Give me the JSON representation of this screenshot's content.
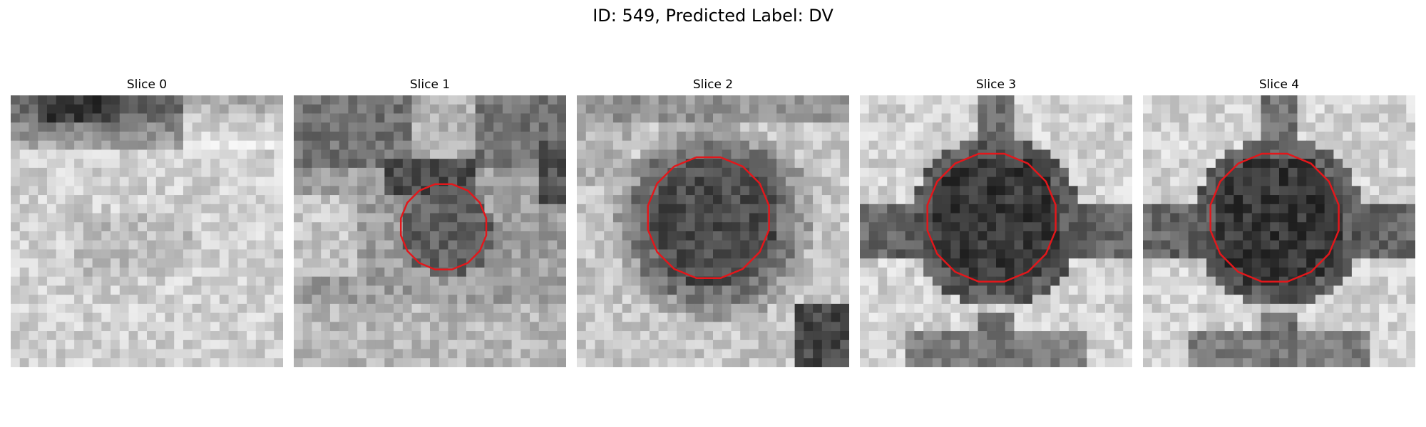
{
  "figure": {
    "title": "ID: 549, Predicted Label: DV"
  },
  "colors": {
    "contour": "#e3171b",
    "background": "#ffffff"
  },
  "slices": [
    {
      "title": "Slice 0",
      "has_contour": false
    },
    {
      "title": "Slice 1",
      "has_contour": true
    },
    {
      "title": "Slice 2",
      "has_contour": true
    },
    {
      "title": "Slice 3",
      "has_contour": true
    },
    {
      "title": "Slice 4",
      "has_contour": true
    }
  ]
}
